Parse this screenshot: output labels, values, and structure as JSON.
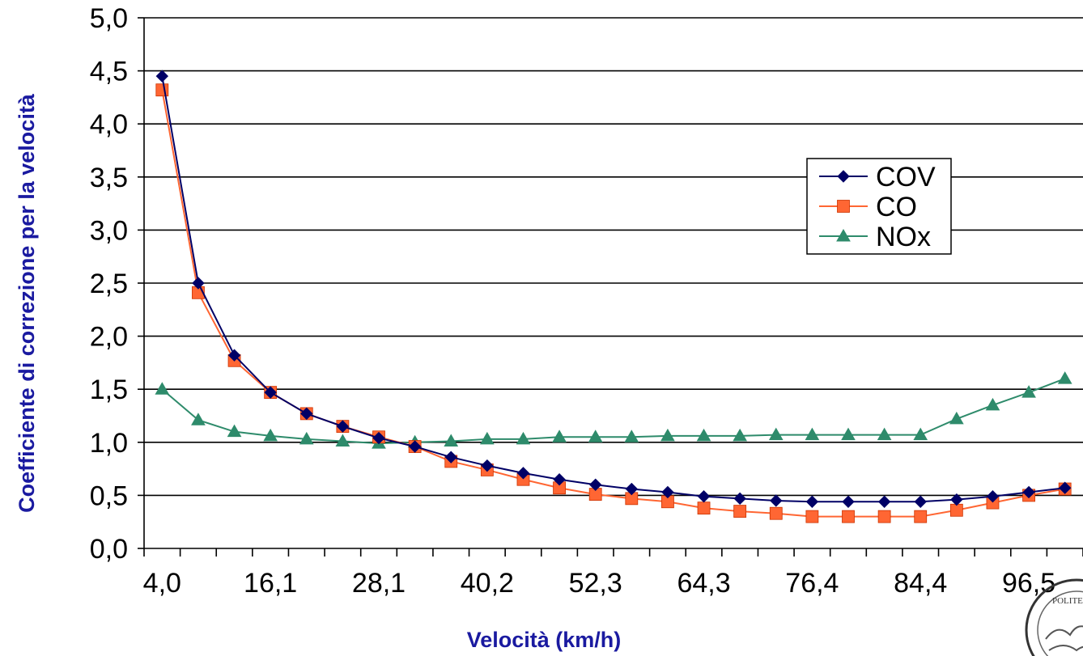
{
  "chart_data": {
    "type": "line",
    "title": "",
    "xlabel": "Velocità  (km/h)",
    "ylabel": "Coefficiente di correzione per la velocità",
    "ylim": [
      0,
      5
    ],
    "y_ticks": [
      "0,0",
      "0,5",
      "1,0",
      "1,5",
      "2,0",
      "2,5",
      "3,0",
      "3,5",
      "4,0",
      "4,5",
      "5,0"
    ],
    "x_tick_labels": [
      "4,0",
      "16,1",
      "28,1",
      "40,2",
      "52,3",
      "64,3",
      "76,4",
      "84,4",
      "96,5"
    ],
    "x": [
      4.0,
      8.0,
      12.1,
      16.1,
      20.1,
      24.1,
      28.1,
      32.2,
      36.2,
      40.2,
      44.3,
      48.3,
      52.3,
      56.3,
      60.3,
      64.3,
      68.4,
      72.4,
      76.4,
      80.5,
      84.4,
      88.5,
      92.5,
      96.5,
      100.6,
      104.6
    ],
    "grid": true,
    "legend_position": "right-center",
    "series": [
      {
        "name": "COV",
        "color": "#000066",
        "marker": "diamond",
        "values": [
          4.45,
          2.5,
          1.82,
          1.47,
          1.27,
          1.15,
          1.04,
          0.96,
          0.86,
          0.78,
          0.71,
          0.65,
          0.6,
          0.56,
          0.53,
          0.49,
          0.47,
          0.45,
          0.44,
          0.44,
          0.44,
          0.44,
          0.46,
          0.49,
          0.53,
          0.57
        ]
      },
      {
        "name": "CO",
        "color": "#ff6633",
        "marker": "square",
        "values": [
          4.32,
          2.41,
          1.77,
          1.47,
          1.27,
          1.15,
          1.05,
          0.96,
          0.82,
          0.74,
          0.65,
          0.57,
          0.51,
          0.47,
          0.44,
          0.38,
          0.35,
          0.33,
          0.3,
          0.3,
          0.3,
          0.3,
          0.36,
          0.43,
          0.5,
          0.56
        ]
      },
      {
        "name": "NOx",
        "color": "#2e8b6b",
        "marker": "triangle",
        "values": [
          1.5,
          1.21,
          1.1,
          1.06,
          1.03,
          1.01,
          0.99,
          1.0,
          1.01,
          1.03,
          1.03,
          1.05,
          1.05,
          1.05,
          1.06,
          1.06,
          1.06,
          1.07,
          1.07,
          1.07,
          1.07,
          1.07,
          1.22,
          1.35,
          1.47,
          1.6
        ]
      }
    ]
  }
}
